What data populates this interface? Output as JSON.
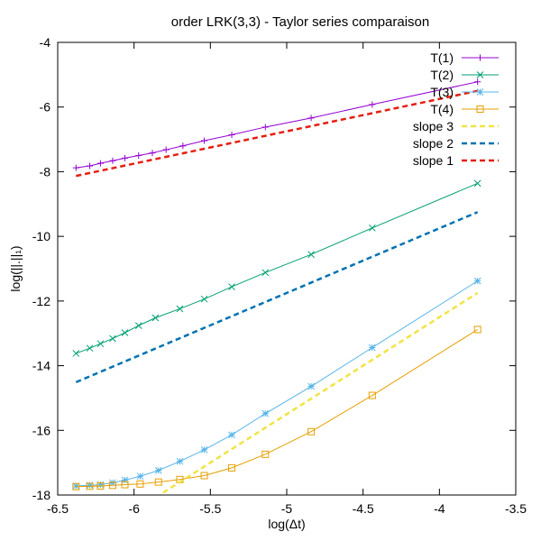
{
  "chart_data": {
    "type": "line",
    "title": "order LRK(3,3) - Taylor series comparaison",
    "xlabel": "log(Δt)",
    "ylabel": "log(||.||₁)",
    "xlim": [
      -6.5,
      -3.5
    ],
    "ylim": [
      -18,
      -4
    ],
    "xticks": [
      -6.5,
      -6,
      -5.5,
      -5,
      -4.5,
      -4,
      -3.5
    ],
    "yticks": [
      -18,
      -16,
      -14,
      -12,
      -10,
      -8,
      -6,
      -4
    ],
    "xtick_labels": [
      "-6.5",
      "-6",
      "-5.5",
      "-5",
      "-4.5",
      "-4",
      "-3.5"
    ],
    "ytick_labels": [
      "-18",
      "-16",
      "-14",
      "-12",
      "-10",
      "-8",
      "-6",
      "-4"
    ],
    "grid": false,
    "legend_position": "top-right",
    "series": [
      {
        "name": "T(1)",
        "color": "#9400d3",
        "marker": "plus",
        "style": "solid",
        "x": [
          -6.38,
          -6.29,
          -6.22,
          -6.14,
          -6.06,
          -5.97,
          -5.88,
          -5.79,
          -5.68,
          -5.54,
          -5.36,
          -5.14,
          -4.84,
          -4.44,
          -3.75
        ],
        "y": [
          -7.88,
          -7.82,
          -7.74,
          -7.66,
          -7.58,
          -7.5,
          -7.42,
          -7.32,
          -7.2,
          -7.04,
          -6.86,
          -6.62,
          -6.34,
          -5.92,
          -5.22
        ]
      },
      {
        "name": "T(2)",
        "color": "#009e73",
        "marker": "cross",
        "style": "solid",
        "x": [
          -6.38,
          -6.29,
          -6.22,
          -6.14,
          -6.06,
          -5.97,
          -5.86,
          -5.7,
          -5.54,
          -5.36,
          -5.14,
          -4.84,
          -4.44,
          -3.75
        ],
        "y": [
          -13.62,
          -13.46,
          -13.32,
          -13.16,
          -12.98,
          -12.76,
          -12.52,
          -12.24,
          -11.94,
          -11.56,
          -11.12,
          -10.56,
          -9.74,
          -8.36
        ]
      },
      {
        "name": "T(3)",
        "color": "#56b4e9",
        "marker": "star",
        "style": "solid",
        "x": [
          -6.38,
          -6.29,
          -6.22,
          -6.14,
          -6.06,
          -5.96,
          -5.84,
          -5.7,
          -5.54,
          -5.36,
          -5.14,
          -4.84,
          -4.44,
          -3.75
        ],
        "y": [
          -17.72,
          -17.7,
          -17.68,
          -17.62,
          -17.54,
          -17.42,
          -17.24,
          -16.96,
          -16.6,
          -16.14,
          -15.48,
          -14.64,
          -13.44,
          -11.38
        ]
      },
      {
        "name": "T(4)",
        "color": "#e69f00",
        "marker": "square",
        "style": "solid",
        "x": [
          -6.38,
          -6.29,
          -6.22,
          -6.14,
          -6.06,
          -5.96,
          -5.84,
          -5.7,
          -5.54,
          -5.36,
          -5.14,
          -4.84,
          -4.44,
          -3.75
        ],
        "y": [
          -17.74,
          -17.73,
          -17.72,
          -17.7,
          -17.68,
          -17.66,
          -17.6,
          -17.52,
          -17.4,
          -17.16,
          -16.74,
          -16.04,
          -14.92,
          -12.88
        ]
      },
      {
        "name": "slope 3",
        "color": "#f0e442",
        "marker": "none",
        "style": "dashed",
        "x": [
          -5.81,
          -3.75
        ],
        "y": [
          -17.93,
          -11.75
        ]
      },
      {
        "name": "slope 2",
        "color": "#0072b2",
        "marker": "none",
        "style": "dashed",
        "x": [
          -6.38,
          -3.75
        ],
        "y": [
          -14.51,
          -9.25
        ]
      },
      {
        "name": "slope 1",
        "color": "#e51e10",
        "marker": "none",
        "style": "dashed",
        "x": [
          -6.38,
          -3.75
        ],
        "y": [
          -8.13,
          -5.5
        ]
      }
    ]
  }
}
